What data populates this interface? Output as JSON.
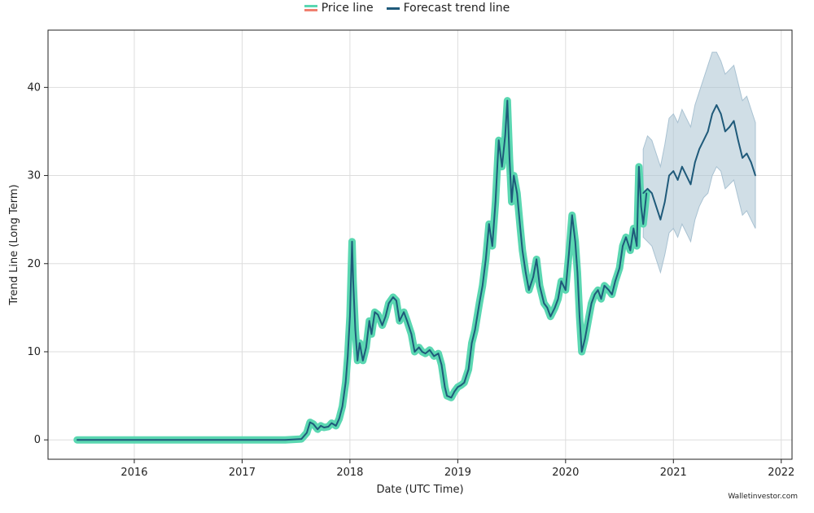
{
  "legend": {
    "price_label": "Price line",
    "forecast_label": "Forecast trend line"
  },
  "watermark": "Walletinvestor.com",
  "colors": {
    "price_fill": "#5ad7b1",
    "price_alt": "#f08070",
    "trend": "#1f5a7a",
    "band": "#a9c2d2",
    "grid": "#dddddd"
  },
  "chart_data": {
    "type": "line",
    "title": "",
    "xlabel": "Date (UTC Time)",
    "ylabel": "Trend Line (Long Term)",
    "xlim": [
      2015.2,
      2022.1
    ],
    "ylim": [
      -2.2,
      46.5
    ],
    "x_ticks": [
      2016,
      2017,
      2018,
      2019,
      2020,
      2021,
      2022
    ],
    "x_tick_labels": [
      "2016",
      "2017",
      "2018",
      "2019",
      "2020",
      "2021",
      "2022"
    ],
    "y_ticks": [
      0,
      10,
      20,
      30,
      40
    ],
    "y_tick_labels": [
      "0",
      "10",
      "20",
      "30",
      "40"
    ],
    "grid": true,
    "legend_position": "top-center",
    "series": [
      {
        "name": "Price line",
        "x": [
          2015.47,
          2015.8,
          2016.2,
          2016.6,
          2017.0,
          2017.4,
          2017.55,
          2017.6,
          2017.63,
          2017.66,
          2017.7,
          2017.73,
          2017.76,
          2017.8,
          2017.83,
          2017.87,
          2017.9,
          2017.93,
          2017.96,
          2017.98,
          2018.0,
          2018.02,
          2018.03,
          2018.05,
          2018.07,
          2018.09,
          2018.12,
          2018.15,
          2018.18,
          2018.2,
          2018.23,
          2018.26,
          2018.3,
          2018.33,
          2018.36,
          2018.4,
          2018.43,
          2018.46,
          2018.5,
          2018.53,
          2018.57,
          2018.6,
          2018.64,
          2018.67,
          2018.7,
          2018.74,
          2018.78,
          2018.82,
          2018.85,
          2018.88,
          2018.9,
          2018.94,
          2018.97,
          2019.0,
          2019.03,
          2019.06,
          2019.1,
          2019.13,
          2019.16,
          2019.2,
          2019.23,
          2019.26,
          2019.29,
          2019.32,
          2019.35,
          2019.38,
          2019.41,
          2019.44,
          2019.46,
          2019.48,
          2019.5,
          2019.52,
          2019.55,
          2019.58,
          2019.6,
          2019.63,
          2019.66,
          2019.7,
          2019.73,
          2019.76,
          2019.8,
          2019.83,
          2019.86,
          2019.9,
          2019.93,
          2019.96,
          2020.0,
          2020.03,
          2020.06,
          2020.09,
          2020.11,
          2020.13,
          2020.15,
          2020.18,
          2020.21,
          2020.24,
          2020.27,
          2020.3,
          2020.33,
          2020.36,
          2020.4,
          2020.43,
          2020.46,
          2020.5,
          2020.53,
          2020.56,
          2020.6,
          2020.63,
          2020.66,
          2020.68,
          2020.7,
          2020.72,
          2020.75
        ],
        "values": [
          0,
          0,
          0,
          0,
          0,
          0,
          0.1,
          0.8,
          2.0,
          1.8,
          1.2,
          1.6,
          1.4,
          1.5,
          1.9,
          1.6,
          2.4,
          3.8,
          6.5,
          9.5,
          14.0,
          22.5,
          18.0,
          12.5,
          9.0,
          11.0,
          9.0,
          10.5,
          13.5,
          12.0,
          14.5,
          14.2,
          13.0,
          14.0,
          15.5,
          16.2,
          15.8,
          13.5,
          14.5,
          13.5,
          12.0,
          10.0,
          10.5,
          10.0,
          9.8,
          10.2,
          9.5,
          9.8,
          8.5,
          6.0,
          5.0,
          4.8,
          5.5,
          6.0,
          6.2,
          6.5,
          8.0,
          11.0,
          12.5,
          15.5,
          17.5,
          20.5,
          24.5,
          22.0,
          27.0,
          34.0,
          31.0,
          34.5,
          38.5,
          32.0,
          27.0,
          30.0,
          28.0,
          24.0,
          21.5,
          19.0,
          17.0,
          18.5,
          20.5,
          17.5,
          15.5,
          15.0,
          14.0,
          15.0,
          16.0,
          18.0,
          17.0,
          21.0,
          25.5,
          22.5,
          19.0,
          14.0,
          10.0,
          11.5,
          13.5,
          15.5,
          16.5,
          17.0,
          16.0,
          17.5,
          17.0,
          16.5,
          18.0,
          19.5,
          22.0,
          23.0,
          21.5,
          24.0,
          22.0,
          31.0,
          26.5,
          24.5,
          28.0
        ]
      },
      {
        "name": "Forecast trend line",
        "x": [
          2020.72,
          2020.76,
          2020.8,
          2020.84,
          2020.88,
          2020.92,
          2020.96,
          2021.0,
          2021.04,
          2021.08,
          2021.12,
          2021.16,
          2021.2,
          2021.24,
          2021.28,
          2021.32,
          2021.36,
          2021.4,
          2021.44,
          2021.48,
          2021.52,
          2021.56,
          2021.6,
          2021.64,
          2021.68,
          2021.72,
          2021.76
        ],
        "values": [
          28.0,
          28.5,
          28.0,
          26.5,
          25.0,
          27.0,
          30.0,
          30.5,
          29.5,
          31.0,
          30.0,
          29.0,
          31.5,
          33.0,
          34.0,
          35.0,
          37.0,
          38.0,
          37.0,
          35.0,
          35.5,
          36.2,
          34.0,
          32.0,
          32.5,
          31.5,
          30.0
        ],
        "upper": [
          33.0,
          34.5,
          34.0,
          32.5,
          31.0,
          33.5,
          36.5,
          37.0,
          36.0,
          37.5,
          36.5,
          35.5,
          38.0,
          39.5,
          41.0,
          42.5,
          44.0,
          44.0,
          43.0,
          41.5,
          42.0,
          42.5,
          40.5,
          38.5,
          39.0,
          37.5,
          36.0
        ],
        "lower": [
          23.0,
          22.5,
          22.0,
          20.5,
          19.0,
          21.0,
          23.5,
          24.0,
          23.0,
          24.5,
          23.5,
          22.5,
          25.0,
          26.5,
          27.5,
          28.0,
          30.0,
          31.0,
          30.5,
          28.5,
          29.0,
          29.5,
          27.5,
          25.5,
          26.0,
          25.0,
          24.0
        ]
      }
    ]
  }
}
